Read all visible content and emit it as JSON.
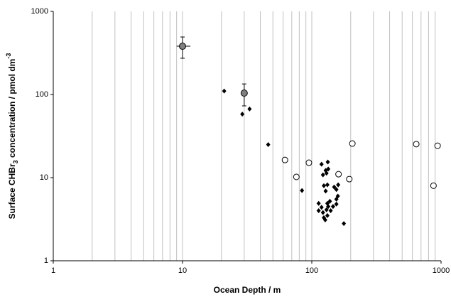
{
  "chart_data": {
    "type": "scatter",
    "xlabel": "Ocean Depth / m",
    "ylabel": [
      "Surface CHBr",
      "3",
      " concentration / pmol dm",
      "-3"
    ],
    "xscale": "log",
    "yscale": "log",
    "xlim": [
      1,
      1000
    ],
    "ylim": [
      1,
      1000
    ],
    "xticks": [
      1,
      10,
      100,
      1000
    ],
    "yticks": [
      1,
      10,
      100,
      1000
    ],
    "xgrid": [
      2,
      3,
      4,
      5,
      6,
      7,
      8,
      9,
      10,
      20,
      30,
      40,
      50,
      60,
      70,
      80,
      90,
      100,
      200,
      300,
      400,
      500,
      600,
      700,
      800,
      900
    ],
    "grid_color": "#c0c0c0",
    "series": [
      {
        "marker": "diamond",
        "color": "#000000",
        "x": [
          21,
          33,
          29,
          46,
          84,
          119,
          133,
          128,
          134,
          122,
          130,
          124,
          132,
          149,
          155,
          160,
          159,
          155,
          177,
          113,
          119,
          122,
          113,
          124,
          127,
          130,
          134,
          140,
          146,
          132,
          138,
          132,
          155,
          128
        ],
        "values": [
          110,
          67,
          58,
          25,
          7.0,
          14.5,
          15.4,
          12.2,
          12.7,
          10.8,
          11.3,
          8.0,
          8.2,
          7.7,
          7.2,
          8.2,
          6.0,
          5.5,
          2.8,
          4.9,
          4.4,
          3.8,
          4.0,
          3.3,
          3.1,
          4.1,
          4.5,
          4.0,
          4.5,
          3.5,
          5.2,
          4.9,
          4.8,
          6.9
        ]
      },
      {
        "marker": "open-circle",
        "color": "#000000",
        "x": [
          62,
          76,
          95,
          161,
          195,
          206,
          643,
          874,
          940
        ],
        "values": [
          16.3,
          10.2,
          15.1,
          11.0,
          9.6,
          25.7,
          25.3,
          8.0,
          24.2
        ]
      },
      {
        "marker": "gray-circle",
        "color": "#808080",
        "x": [
          10,
          30
        ],
        "values": [
          381,
          104
        ],
        "y_low": [
          273,
          73
        ],
        "y_high": [
          492,
          134
        ],
        "x_low": [
          9,
          null
        ],
        "x_high": [
          11.5,
          null
        ]
      }
    ]
  }
}
